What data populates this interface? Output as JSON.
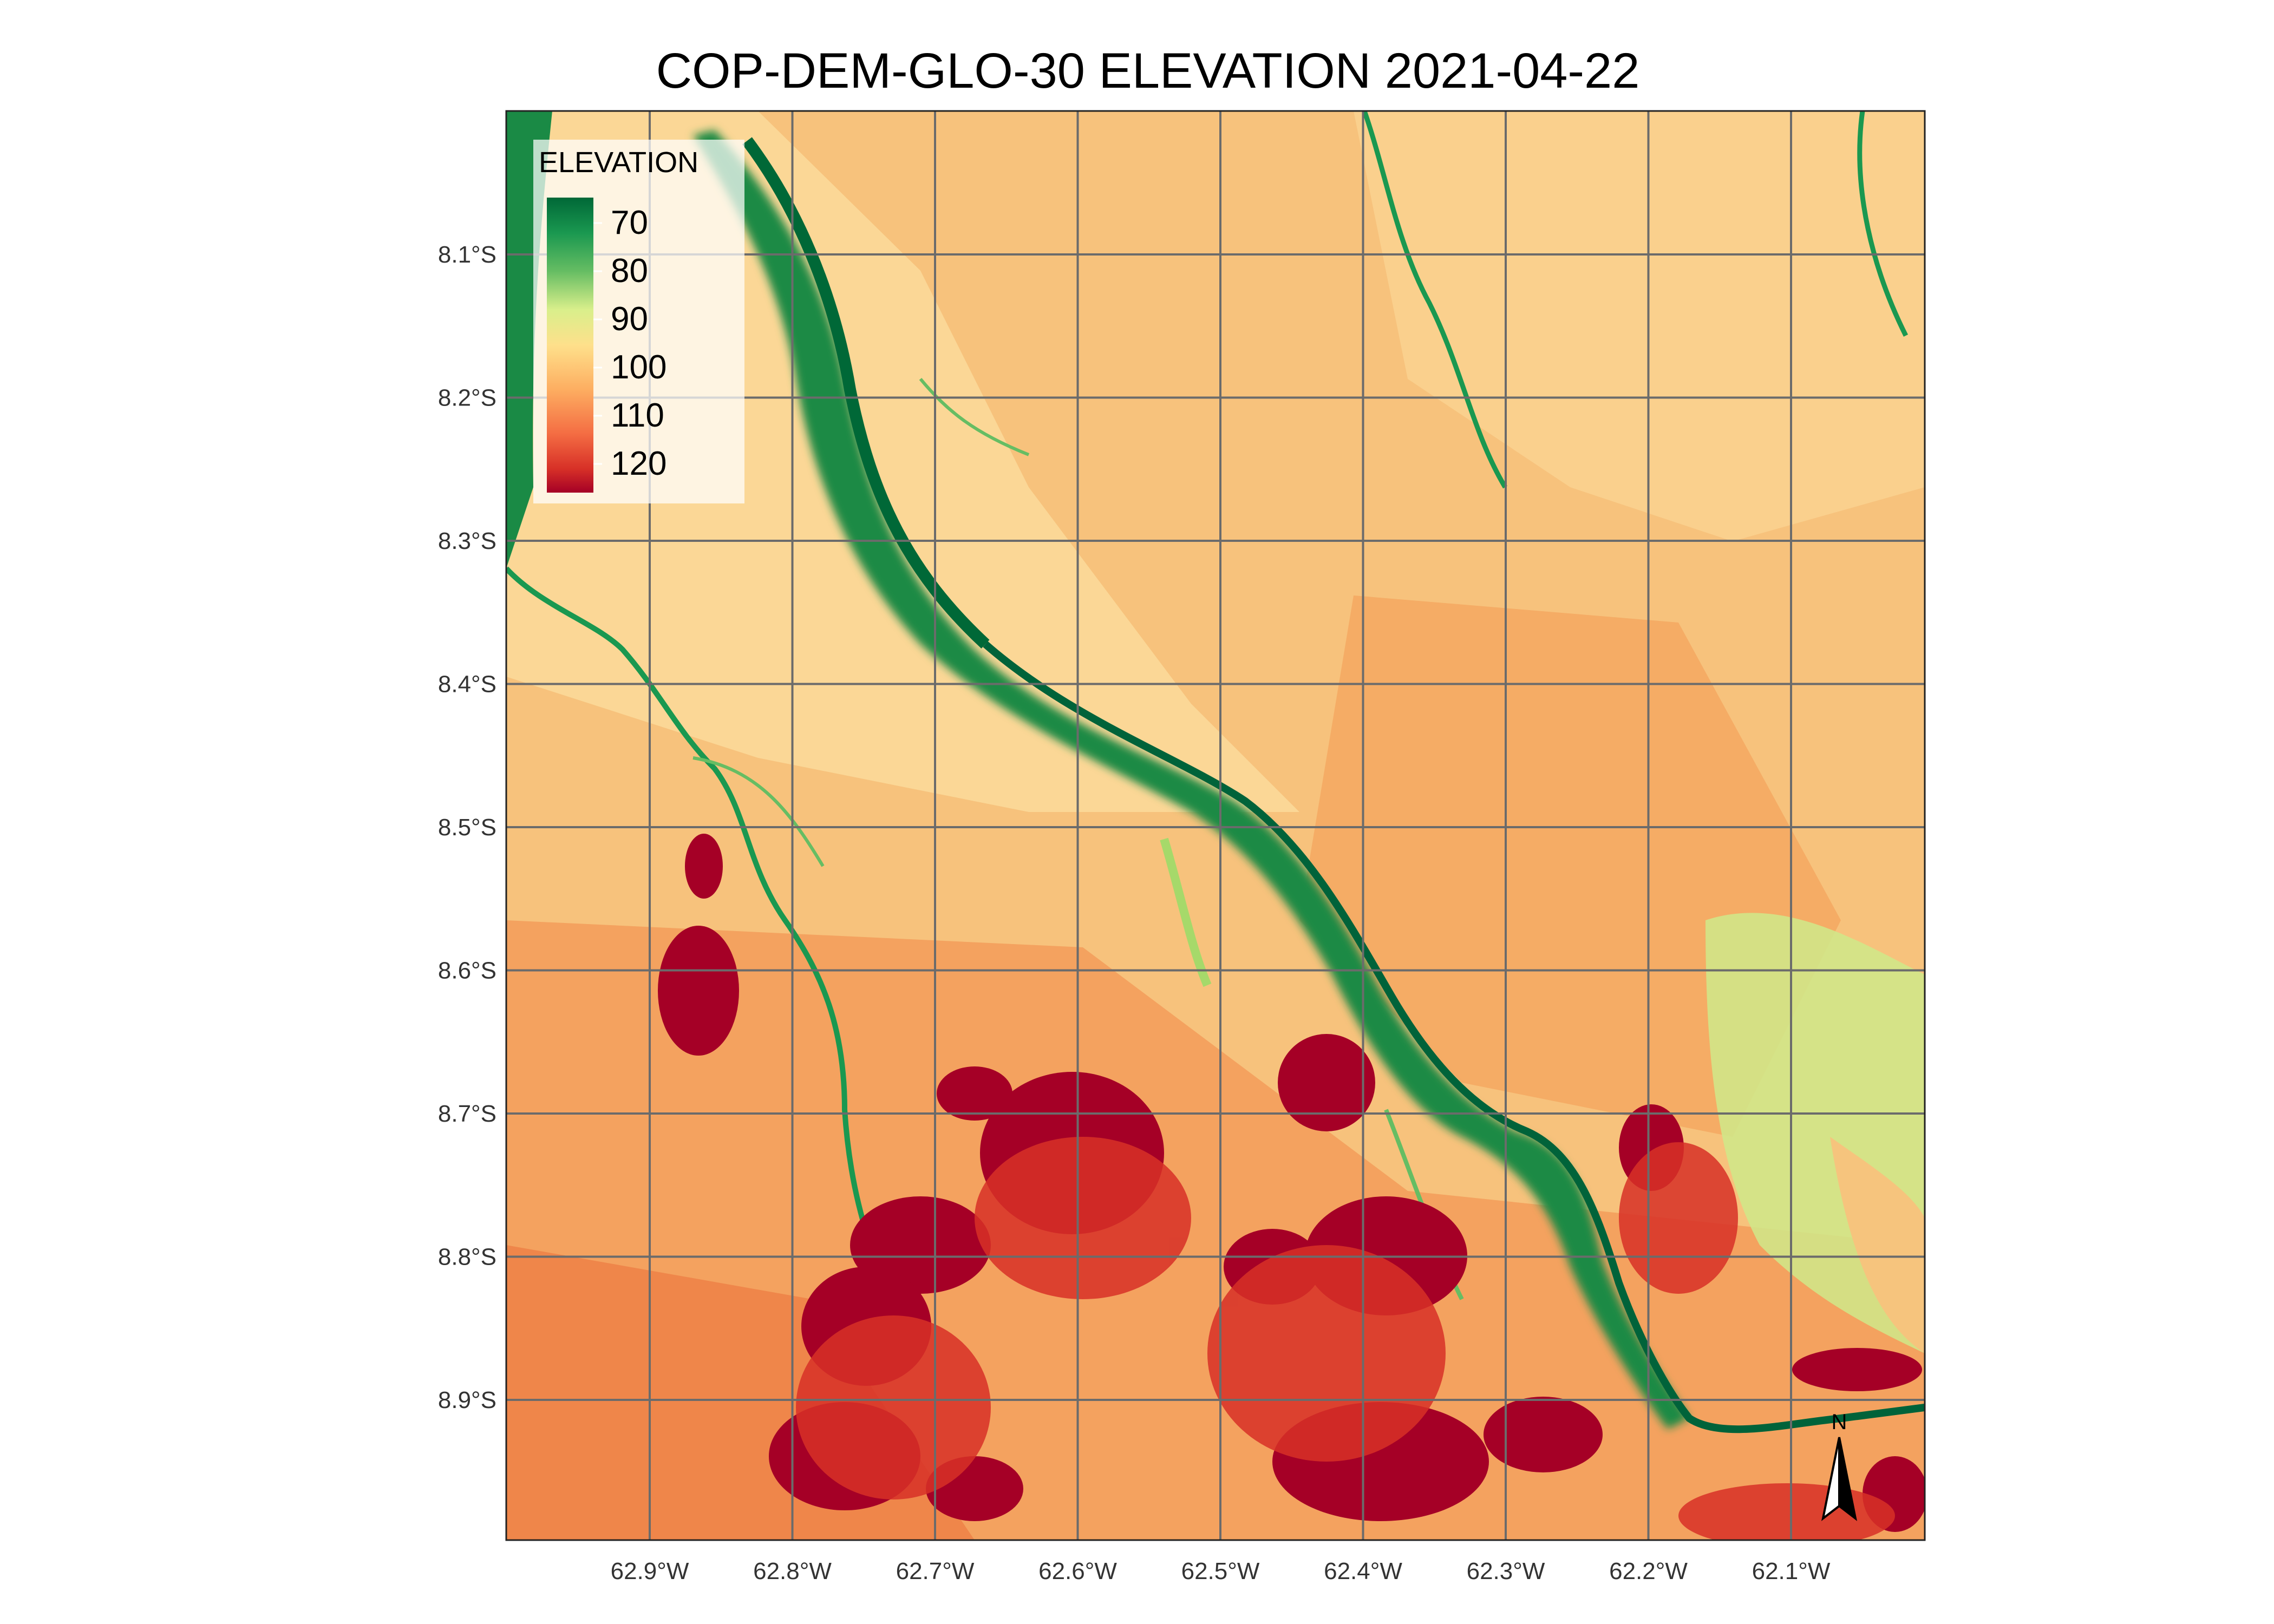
{
  "title": "COP-DEM-GLO-30 ELEVATION 2021-04-22",
  "map": {
    "x_tick_labels": [
      "62.9°W",
      "62.8°W",
      "62.7°W",
      "62.6°W",
      "62.5°W",
      "62.4°W",
      "62.3°W",
      "62.2°W",
      "62.1°W"
    ],
    "y_tick_labels": [
      "8.1°S",
      "8.2°S",
      "8.3°S",
      "8.4°S",
      "8.5°S",
      "8.6°S",
      "8.7°S",
      "8.8°S",
      "8.9°S"
    ],
    "grid": true,
    "background_color": "#f5c27a"
  },
  "legend": {
    "title": "ELEVATION",
    "labels": [
      "70",
      "80",
      "90",
      "100",
      "110",
      "120"
    ],
    "placement": "top-left",
    "colors": [
      "#006837",
      "#1a9850",
      "#66bd63",
      "#a6d96a",
      "#d9ef8b",
      "#fee08b",
      "#fdae61",
      "#f46d43",
      "#d73027",
      "#a50026"
    ]
  },
  "north_arrow": {
    "label": "N"
  }
}
